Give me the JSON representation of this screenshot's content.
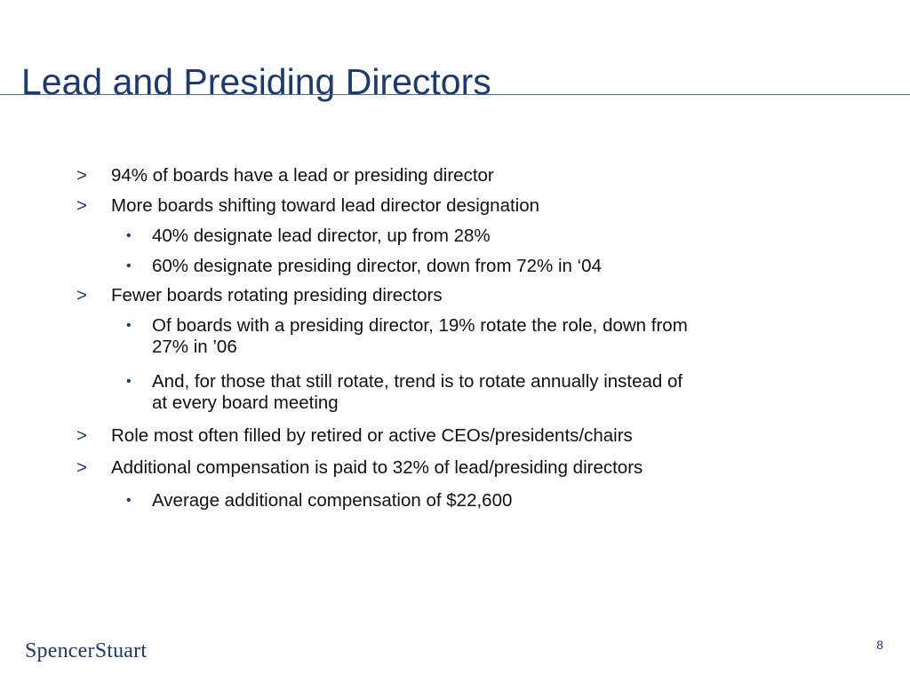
{
  "slide": {
    "title": "Lead and Presiding Directors",
    "bullets": [
      {
        "marker": ">",
        "text": "94% of boards have a lead or presiding director"
      },
      {
        "marker": ">",
        "text": "More boards shifting toward lead director designation",
        "sub": [
          {
            "marker": "•",
            "text": "40% designate lead director, up from 28%"
          },
          {
            "marker": "•",
            "text": "60% designate presiding director, down from 72% in ‘04"
          }
        ]
      },
      {
        "marker": ">",
        "text": "Fewer boards rotating presiding directors",
        "sub": [
          {
            "marker": "•",
            "line1": "Of boards with a presiding director, 19% rotate the role, down from",
            "line2": "27% in ’06"
          },
          {
            "marker": "•",
            "line1": "And, for those that still rotate, trend is to rotate annually instead of",
            "line2": "at every board meeting"
          }
        ]
      },
      {
        "marker": ">",
        "text": "Role most often filled by retired or active CEOs/presidents/chairs"
      },
      {
        "marker": ">",
        "text": "Additional compensation is paid to 32% of lead/presiding directors",
        "sub": [
          {
            "marker": "•",
            "text": "Average additional compensation of $22,600"
          }
        ]
      }
    ]
  },
  "footer": {
    "logo_text": "SpencerStuart",
    "page_number": "8"
  },
  "colors": {
    "title": "#1c3a6e",
    "body_text": "#111111",
    "rule": "#4a6a93"
  }
}
